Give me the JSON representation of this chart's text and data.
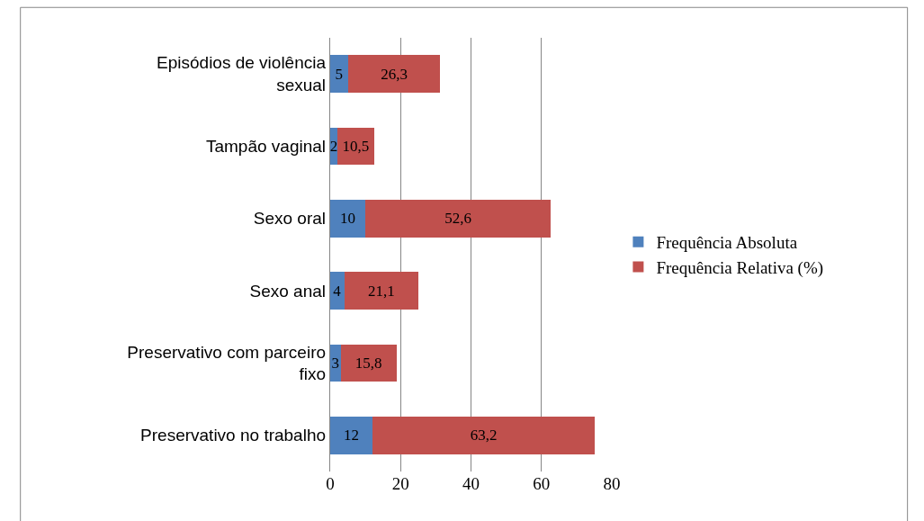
{
  "chart_data": {
    "type": "bar",
    "orientation": "horizontal",
    "stacked": true,
    "grid": "x",
    "legend": "right",
    "categories": [
      "Episódios de violência sexual",
      "Tampão vaginal",
      "Sexo oral",
      "Sexo anal",
      "Preservativo com parceiro fixo",
      "Preservativo no trabalho"
    ],
    "series": [
      {
        "name": "Frequência Absoluta",
        "color": "#4f81bd",
        "values": [
          5,
          2,
          10,
          4,
          3,
          12
        ],
        "value_labels": [
          "5",
          "2",
          "10",
          "4",
          "3",
          "12"
        ]
      },
      {
        "name": "Frequência Relativa (%)",
        "color": "#c0504d",
        "values": [
          26.3,
          10.5,
          52.6,
          21.1,
          15.8,
          63.2
        ],
        "value_labels": [
          "26,3",
          "10,5",
          "52,6",
          "21,1",
          "15,8",
          "63,2"
        ]
      }
    ],
    "xlim": [
      0,
      80
    ],
    "xticks": [
      0,
      20,
      40,
      60,
      80
    ]
  }
}
